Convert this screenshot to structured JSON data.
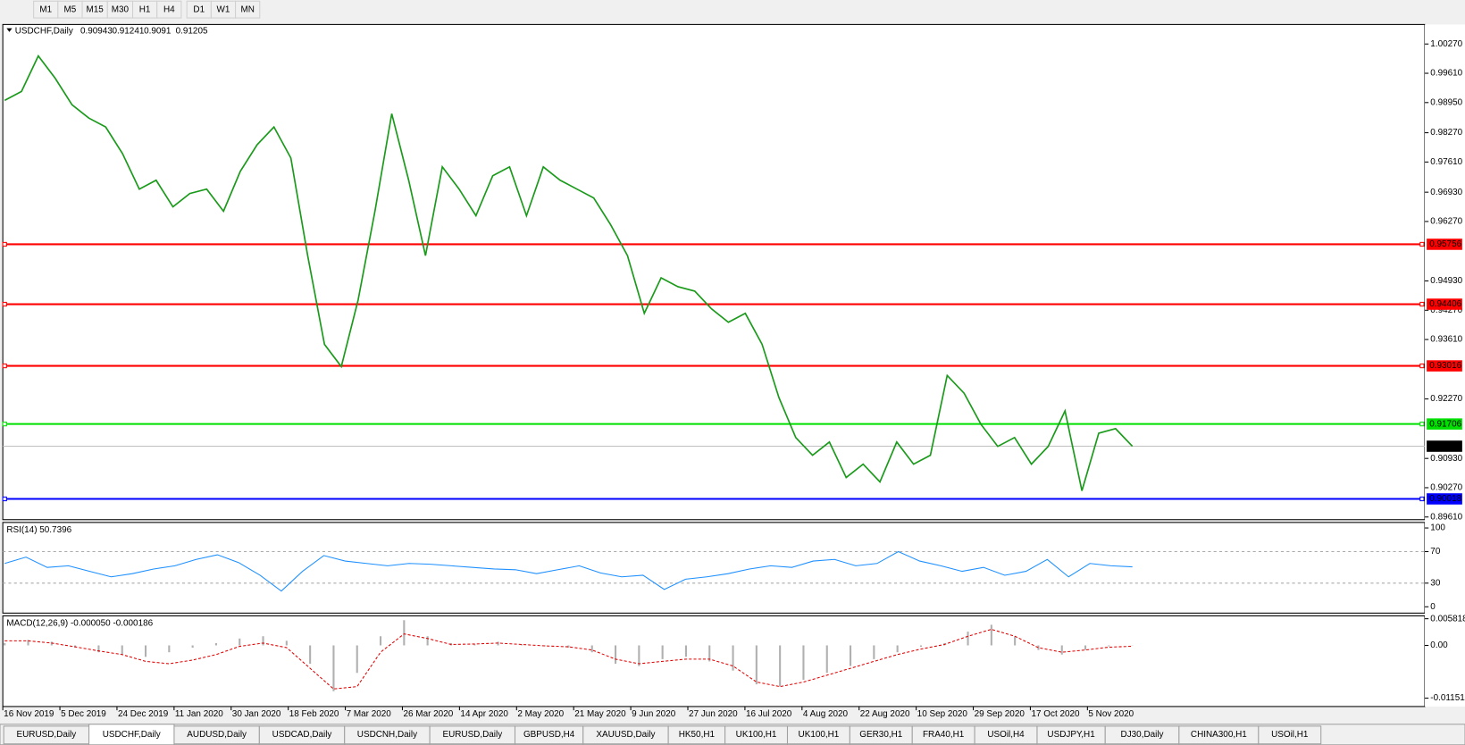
{
  "toolbar": [
    "M1",
    "M5",
    "M15",
    "M30",
    "H1",
    "H4",
    "D1",
    "W1",
    "MN"
  ],
  "chart_data": [
    {
      "type": "line",
      "title": "USDCHF,Daily",
      "ohlc": [
        0.90943,
        0.91241,
        0.9091,
        0.91205
      ],
      "x_labels": [
        "16 Nov 2019",
        "5 Dec 2019",
        "24 Dec 2019",
        "11 Jan 2020",
        "30 Jan 2020",
        "18 Feb 2020",
        "7 Mar 2020",
        "26 Mar 2020",
        "14 Apr 2020",
        "2 May 2020",
        "21 May 2020",
        "9 Jun 2020",
        "27 Jun 2020",
        "16 Jul 2020",
        "4 Aug 2020",
        "22 Aug 2020",
        "10 Sep 2020",
        "29 Sep 2020",
        "17 Oct 2020",
        "5 Nov 2020"
      ],
      "series": [
        {
          "color": "#1a9a1a",
          "values": [
            0.99,
            0.992,
            1.0,
            0.995,
            0.989,
            0.986,
            0.984,
            0.978,
            0.97,
            0.972,
            0.966,
            0.969,
            0.97,
            0.965,
            0.974,
            0.98,
            0.984,
            0.977,
            0.955,
            0.935,
            0.93,
            0.945,
            0.965,
            0.987,
            0.972,
            0.955,
            0.975,
            0.97,
            0.964,
            0.973,
            0.975,
            0.964,
            0.975,
            0.972,
            0.97,
            0.968,
            0.962,
            0.955,
            0.942,
            0.95,
            0.948,
            0.947,
            0.943,
            0.94,
            0.942,
            0.935,
            0.923,
            0.914,
            0.91,
            0.913,
            0.905,
            0.908,
            0.904,
            0.913,
            0.908,
            0.91,
            0.928,
            0.924,
            0.917,
            0.912,
            0.914,
            0.908,
            0.912,
            0.92,
            0.902,
            0.915,
            0.916,
            0.91205
          ]
        }
      ],
      "levels": [
        {
          "value": 0.95756,
          "color": "#ff0000"
        },
        {
          "value": 0.94406,
          "color": "#ff0000"
        },
        {
          "value": 0.93016,
          "color": "#ff0000"
        },
        {
          "value": 0.91706,
          "color": "#00e000"
        },
        {
          "value": 0.90018,
          "color": "#0000ff"
        }
      ],
      "current": 0.91205,
      "ylim": [
        0.8955,
        1.0071
      ],
      "yticks": [
        {
          "value": 1.0027,
          "label": "1.00270"
        },
        {
          "value": 0.9961,
          "label": "0.99610"
        },
        {
          "value": 0.9895,
          "label": "0.98950"
        },
        {
          "value": 0.9827,
          "label": "0.98270"
        },
        {
          "value": 0.9761,
          "label": "0.97610"
        },
        {
          "value": 0.9693,
          "label": "0.96930"
        },
        {
          "value": 0.9627,
          "label": "0.96270"
        },
        {
          "value": 0.9493,
          "label": "0.94930"
        },
        {
          "value": 0.9427,
          "label": "0.94270"
        },
        {
          "value": 0.9361,
          "label": "0.93610"
        },
        {
          "value": 0.9227,
          "label": "0.92270"
        },
        {
          "value": 0.9093,
          "label": "0.90930"
        },
        {
          "value": 0.9027,
          "label": "0.90270"
        },
        {
          "value": 0.8961,
          "label": "0.89610"
        }
      ]
    },
    {
      "type": "line",
      "title": "RSI(14) 50.7396",
      "series": [
        {
          "color": "#1e90ff",
          "values": [
            55,
            63,
            50,
            52,
            45,
            38,
            42,
            48,
            52,
            60,
            66,
            56,
            40,
            20,
            45,
            65,
            58,
            55,
            52,
            55,
            54,
            52,
            50,
            48,
            47,
            42,
            47,
            52,
            43,
            38,
            40,
            22,
            35,
            38,
            42,
            48,
            52,
            50,
            58,
            60,
            52,
            55,
            70,
            58,
            52,
            45,
            50,
            40,
            45,
            60,
            38,
            55,
            52,
            50.7396
          ]
        }
      ],
      "guides": [
        70,
        30
      ],
      "ylim": [
        -8,
        107
      ],
      "yticks": [
        100,
        70,
        30,
        0
      ]
    },
    {
      "type": "macd",
      "title": "MACD(12,26,9) -0.000050 -0.000186",
      "histogram": [
        0.0005,
        0.0012,
        0.0008,
        -0.0005,
        -0.0015,
        -0.002,
        -0.0025,
        -0.0015,
        -0.0005,
        0.0005,
        0.0015,
        0.002,
        0.001,
        -0.004,
        -0.01,
        -0.006,
        0.002,
        0.0055,
        0.002,
        0.0005,
        0.0003,
        0.0008,
        0.0003,
        -0.0002,
        -0.0005,
        -0.0015,
        -0.004,
        -0.0045,
        -0.003,
        -0.0025,
        -0.0035,
        -0.0055,
        -0.0085,
        -0.009,
        -0.0075,
        -0.006,
        -0.0045,
        -0.003,
        -0.0015,
        -0.0003,
        0.0005,
        0.003,
        0.0045,
        0.002,
        -0.001,
        -0.002,
        -0.001,
        -0.0002,
        -5e-05
      ],
      "signal": [
        0.001,
        0.001,
        0.0005,
        -0.0003,
        -0.0012,
        -0.002,
        -0.0035,
        -0.004,
        -0.0032,
        -0.002,
        -0.0002,
        0.0005,
        -0.0005,
        -0.005,
        -0.0095,
        -0.009,
        -0.0015,
        0.0025,
        0.0015,
        0.0002,
        0.0003,
        0.0005,
        0.0002,
        -0.0001,
        -0.0003,
        -0.001,
        -0.003,
        -0.004,
        -0.0035,
        -0.003,
        -0.003,
        -0.0045,
        -0.008,
        -0.009,
        -0.008,
        -0.0065,
        -0.005,
        -0.0035,
        -0.002,
        -0.0008,
        0.0002,
        0.002,
        0.0035,
        0.002,
        -0.0005,
        -0.0015,
        -0.001,
        -0.0004,
        -0.000186
      ],
      "ylim": [
        -0.01334,
        0.00644
      ],
      "yticks": [
        0.005818,
        {
          "value": 0,
          "label": "0.00"
        },
        -0.011514
      ]
    }
  ],
  "tabs": [
    "EURUSD,Daily",
    "USDCHF,Daily",
    "AUDUSD,Daily",
    "USDCAD,Daily",
    "USDCNH,Daily",
    "EURUSD,Daily",
    "GBPUSD,H4",
    "XAUUSD,Daily",
    "HK50,H1",
    "UK100,H1",
    "UK100,H1",
    "GER30,H1",
    "FRA40,H1",
    "USOil,H4",
    "USDJPY,H1",
    "DJ30,Daily",
    "CHINA300,H1",
    "USOil,H1"
  ],
  "active_tab": 1
}
